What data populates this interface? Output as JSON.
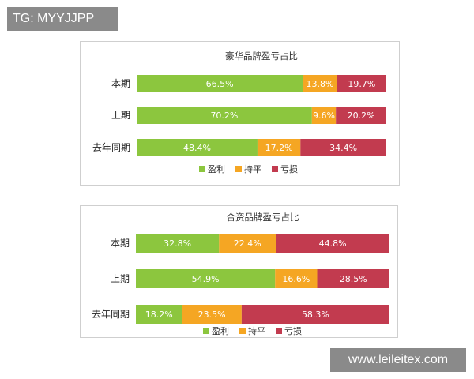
{
  "corner_tag": "TG: MYYJJPP",
  "watermark": "www.leileitex.com",
  "chart_data": [
    {
      "type": "bar",
      "orientation": "horizontal",
      "stacked": "percent",
      "title": "豪华品牌盈亏占比",
      "categories": [
        "本期",
        "上期",
        "去年同期"
      ],
      "series": [
        {
          "name": "盈利",
          "color": "#8cc63e",
          "values": [
            66.5,
            70.2,
            48.4
          ]
        },
        {
          "name": "持平",
          "color": "#f5a623",
          "values": [
            13.8,
            9.6,
            17.2
          ]
        },
        {
          "name": "亏损",
          "color": "#c23b4f",
          "values": [
            19.7,
            20.2,
            34.4
          ]
        }
      ],
      "data_labels": [
        [
          "66.5%",
          "70.2%",
          "48.4%"
        ],
        [
          "13.8%",
          "9.6%",
          "17.2%"
        ],
        [
          "19.7%",
          "20.2%",
          "34.4%"
        ]
      ],
      "xlim": [
        0,
        100
      ],
      "legend": "bottom"
    },
    {
      "type": "bar",
      "orientation": "horizontal",
      "stacked": "percent",
      "title": "合资品牌盈亏占比",
      "categories": [
        "本期",
        "上期",
        "去年同期"
      ],
      "series": [
        {
          "name": "盈利",
          "color": "#8cc63e",
          "values": [
            32.8,
            54.9,
            18.2
          ]
        },
        {
          "name": "持平",
          "color": "#f5a623",
          "values": [
            22.4,
            16.6,
            23.5
          ]
        },
        {
          "name": "亏损",
          "color": "#c23b4f",
          "values": [
            44.8,
            28.5,
            58.3
          ]
        }
      ],
      "data_labels": [
        [
          "32.8%",
          "54.9%",
          "18.2%"
        ],
        [
          "22.4%",
          "16.6%",
          "23.5%"
        ],
        [
          "44.8%",
          "28.5%",
          "58.3%"
        ]
      ],
      "xlim": [
        0,
        100
      ],
      "legend": "bottom"
    }
  ]
}
